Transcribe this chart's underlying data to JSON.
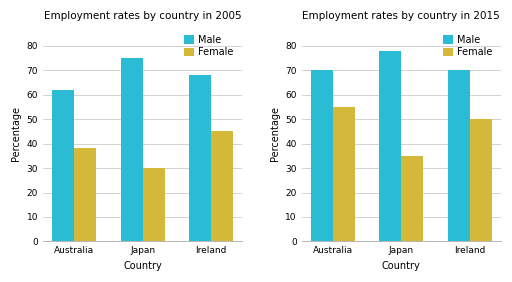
{
  "chart2005": {
    "title": "Employment rates by country in 2005",
    "countries": [
      "Australia",
      "Japan",
      "Ireland"
    ],
    "male": [
      62,
      75,
      68
    ],
    "female": [
      38,
      30,
      45
    ]
  },
  "chart2015": {
    "title": "Employment rates by country in 2015",
    "countries": [
      "Australia",
      "Japan",
      "Ireland"
    ],
    "male": [
      70,
      78,
      70
    ],
    "female": [
      55,
      35,
      50
    ]
  },
  "male_color": "#29BCD4",
  "female_color": "#D4B83A",
  "ylabel": "Percentage",
  "xlabel": "Country",
  "ylim": [
    0,
    88
  ],
  "yticks": [
    0,
    10,
    20,
    30,
    40,
    50,
    60,
    70,
    80
  ],
  "bar_width": 0.32,
  "legend_labels": [
    "Male",
    "Female"
  ],
  "bg_color": "#ffffff",
  "grid_color": "#cccccc",
  "title_fontsize": 7.5,
  "axis_fontsize": 7,
  "tick_fontsize": 6.5,
  "legend_fontsize": 7
}
